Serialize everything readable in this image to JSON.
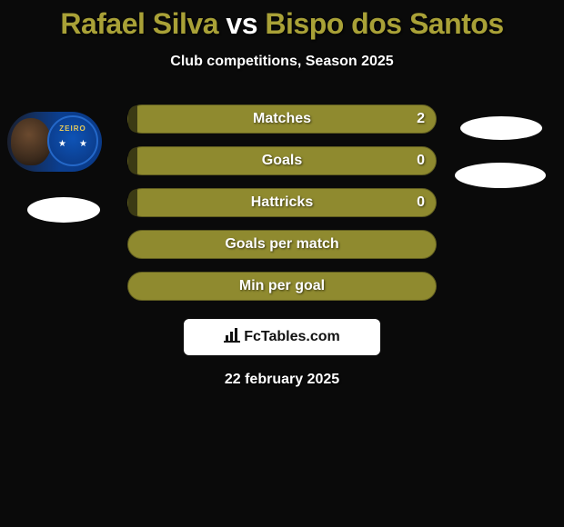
{
  "colors": {
    "bg": "#0a0a0a",
    "title": "#a9a137",
    "bar_bg": "#8f8a2f",
    "bar_border": "#5f5c20",
    "bar_fill_left": "#3b3a14",
    "brand_bg": "#ffffff",
    "brand_text": "#111111",
    "white": "#ffffff"
  },
  "title": {
    "player1": "Rafael Silva",
    "vs": "vs",
    "player2": "Bispo dos Santos"
  },
  "subtitle": "Club competitions, Season 2025",
  "player_left": {
    "club_text": "ZEIRO"
  },
  "bars": [
    {
      "label": "Matches",
      "value_left": "2",
      "left_fill_pct": 3
    },
    {
      "label": "Goals",
      "value_left": "0",
      "left_fill_pct": 3
    },
    {
      "label": "Hattricks",
      "value_left": "0",
      "left_fill_pct": 3
    },
    {
      "label": "Goals per match",
      "value_left": "",
      "left_fill_pct": 0
    },
    {
      "label": "Min per goal",
      "value_left": "",
      "left_fill_pct": 0
    }
  ],
  "brand": "FcTables.com",
  "date": "22 february 2025"
}
